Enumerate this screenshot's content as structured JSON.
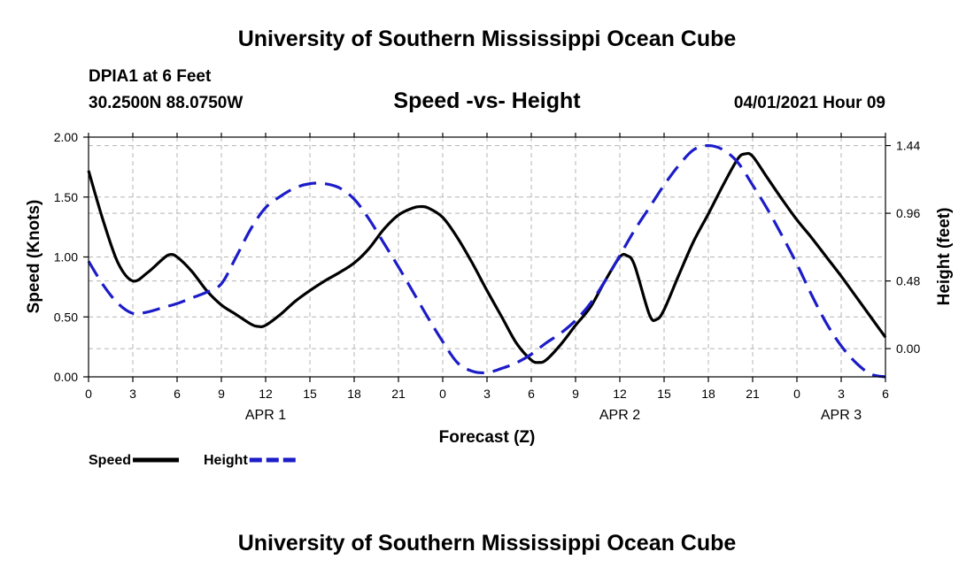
{
  "header": {
    "title": "University of Southern Mississippi Ocean Cube",
    "station": "DPIA1 at 6 Feet",
    "coordinates": "30.2500N  88.0750W",
    "subtitle": "Speed -vs- Height",
    "datetime": "04/01/2021 Hour 09"
  },
  "footer": {
    "title": "University of Southern Mississippi Ocean Cube"
  },
  "chart_data": {
    "type": "line",
    "title": "Speed -vs- Height",
    "xlabel": "Forecast (Z)",
    "ylabel": "Speed (Knots)",
    "y2label": "Height (feet)",
    "xlim": [
      0,
      54
    ],
    "ylim": [
      0,
      2.0
    ],
    "y2lim": [
      -0.2,
      1.5
    ],
    "x_ticks": [
      0,
      3,
      6,
      9,
      12,
      15,
      18,
      21,
      24,
      27,
      30,
      33,
      36,
      39,
      42,
      45,
      48,
      51,
      54
    ],
    "x_tick_labels": [
      "0",
      "3",
      "6",
      "9",
      "12",
      "15",
      "18",
      "21",
      "0",
      "3",
      "6",
      "9",
      "12",
      "15",
      "18",
      "21",
      "0",
      "3",
      "6"
    ],
    "y_ticks": [
      0,
      0.5,
      1.0,
      1.5,
      2.0
    ],
    "y_tick_labels": [
      "0.00",
      "0.50",
      "1.00",
      "1.50",
      "2.00"
    ],
    "y2_ticks": [
      0.0,
      0.48,
      0.96,
      1.44
    ],
    "y2_tick_labels": [
      "0.00",
      "0.48",
      "0.96",
      "1.44"
    ],
    "date_labels": [
      {
        "x": 12,
        "label": "APR 1"
      },
      {
        "x": 36,
        "label": "APR 2"
      },
      {
        "x": 51,
        "label": "APR 3"
      }
    ],
    "grid": true,
    "legend_position": "bottom-left",
    "series": [
      {
        "name": "Speed",
        "axis": "left",
        "color": "#000000",
        "dash": "solid",
        "x": [
          0,
          1,
          2,
          3,
          4,
          5,
          5.5,
          6,
          7,
          8,
          9,
          10,
          11,
          11.5,
          12,
          13,
          14,
          15,
          16,
          17,
          18,
          19,
          20,
          21,
          22,
          22.5,
          23,
          24,
          25,
          26,
          27,
          28,
          29,
          30,
          30.5,
          31,
          32,
          33,
          34,
          35,
          36,
          36.5,
          37,
          38,
          38.5,
          39,
          40,
          41,
          42,
          43,
          44,
          44.5,
          45,
          46,
          47,
          48,
          49,
          50,
          51,
          52,
          53,
          54
        ],
        "values": [
          1.72,
          1.3,
          0.95,
          0.8,
          0.87,
          0.98,
          1.02,
          1.0,
          0.88,
          0.72,
          0.6,
          0.52,
          0.44,
          0.42,
          0.43,
          0.52,
          0.63,
          0.72,
          0.8,
          0.87,
          0.95,
          1.07,
          1.23,
          1.35,
          1.41,
          1.42,
          1.41,
          1.33,
          1.16,
          0.95,
          0.72,
          0.5,
          0.28,
          0.14,
          0.12,
          0.14,
          0.27,
          0.43,
          0.58,
          0.8,
          1.0,
          1.01,
          0.93,
          0.52,
          0.48,
          0.56,
          0.85,
          1.13,
          1.36,
          1.6,
          1.82,
          1.86,
          1.84,
          1.66,
          1.48,
          1.31,
          1.16,
          1.0,
          0.84,
          0.67,
          0.5,
          0.33
        ]
      },
      {
        "name": "Height",
        "axis": "right",
        "color": "#1c1cc8",
        "dash": "dashed",
        "x": [
          0,
          1,
          2,
          3,
          4,
          5,
          6,
          7,
          8,
          9,
          10,
          11,
          12,
          13,
          14,
          15,
          16,
          17,
          18,
          19,
          20,
          21,
          22,
          23,
          24,
          25,
          26,
          27,
          28,
          29,
          30,
          31,
          32,
          33,
          34,
          35,
          36,
          37,
          38,
          39,
          40,
          41,
          42,
          43,
          44,
          45,
          46,
          47,
          48,
          49,
          50,
          51,
          52,
          53,
          54
        ],
        "values": [
          0.62,
          0.45,
          0.32,
          0.25,
          0.26,
          0.29,
          0.32,
          0.36,
          0.4,
          0.46,
          0.65,
          0.85,
          1.0,
          1.08,
          1.14,
          1.17,
          1.17,
          1.14,
          1.06,
          0.92,
          0.75,
          0.58,
          0.4,
          0.22,
          0.05,
          -0.1,
          -0.16,
          -0.17,
          -0.14,
          -0.1,
          -0.04,
          0.04,
          0.11,
          0.2,
          0.32,
          0.48,
          0.66,
          0.84,
          1.0,
          1.16,
          1.3,
          1.41,
          1.44,
          1.41,
          1.32,
          1.16,
          0.99,
          0.8,
          0.6,
          0.38,
          0.18,
          0.02,
          -0.1,
          -0.18,
          -0.2
        ]
      }
    ]
  },
  "legend": {
    "items": [
      {
        "label": "Speed",
        "color": "#000000",
        "dash": "solid"
      },
      {
        "label": "Height",
        "color": "#1c1cc8",
        "dash": "dashed"
      }
    ]
  }
}
